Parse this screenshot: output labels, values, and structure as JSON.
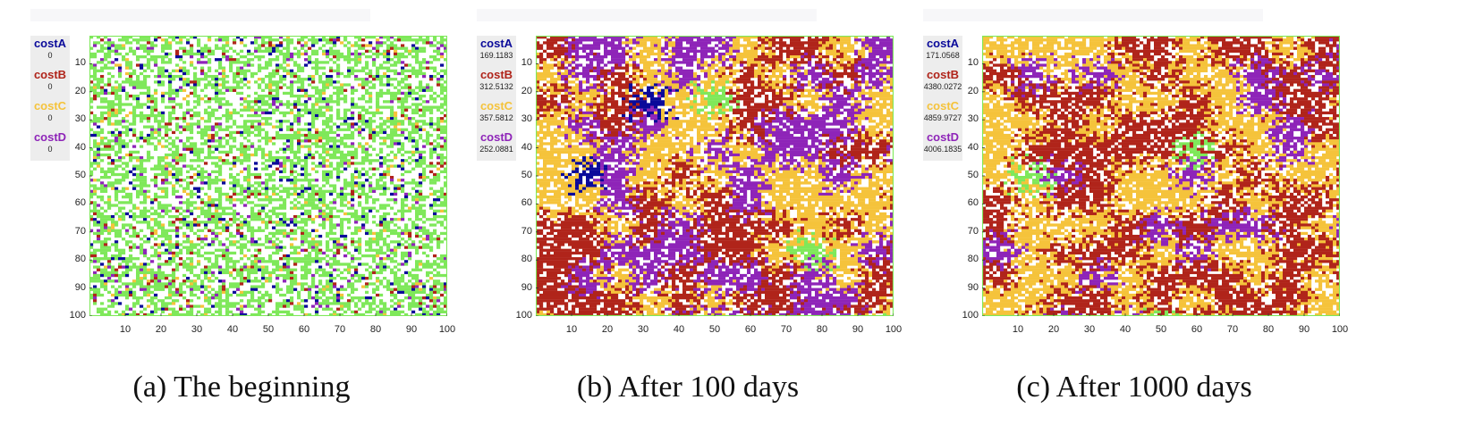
{
  "chart_data": [
    {
      "type": "heatmap",
      "caption": "(a) The beginning",
      "legend": [
        {
          "name": "costA",
          "value": "0",
          "color": "#0a0a9a"
        },
        {
          "name": "costB",
          "value": "0",
          "color": "#b0241a"
        },
        {
          "name": "costC",
          "value": "0",
          "color": "#f5c33b"
        },
        {
          "name": "costD",
          "value": "0",
          "color": "#8e24b8"
        }
      ],
      "grid_size": [
        100,
        100
      ],
      "xticks": [
        10,
        20,
        30,
        40,
        50,
        60,
        70,
        80,
        90,
        100
      ],
      "yticks": [
        10,
        20,
        30,
        40,
        50,
        60,
        70,
        80,
        90,
        100
      ],
      "xlim": [
        0,
        100
      ],
      "ylim": [
        0,
        100
      ],
      "cell_colors": {
        "empty": "#ffffff",
        "free": "#7fe85a",
        "A": "#0a0a9a",
        "B": "#b0241a",
        "C": "#f5c33b",
        "D": "#8e24b8"
      },
      "cell_fractions": {
        "empty": 0.45,
        "free": 0.43,
        "A": 0.03,
        "B": 0.03,
        "C": 0.03,
        "D": 0.03
      },
      "clustered": false,
      "frame_color": "#7fe85a"
    },
    {
      "type": "heatmap",
      "caption": "(b) After 100 days",
      "legend": [
        {
          "name": "costA",
          "value": "169.1183",
          "color": "#0a0a9a"
        },
        {
          "name": "costB",
          "value": "312.5132",
          "color": "#b0241a"
        },
        {
          "name": "costC",
          "value": "357.5812",
          "color": "#f5c33b"
        },
        {
          "name": "costD",
          "value": "252.0881",
          "color": "#8e24b8"
        }
      ],
      "grid_size": [
        100,
        100
      ],
      "xticks": [
        10,
        20,
        30,
        40,
        50,
        60,
        70,
        80,
        90,
        100
      ],
      "yticks": [
        10,
        20,
        30,
        40,
        50,
        60,
        70,
        80,
        90,
        100
      ],
      "xlim": [
        0,
        100
      ],
      "ylim": [
        0,
        100
      ],
      "cell_colors": {
        "empty": "#ffffff",
        "free": "#7fe85a",
        "A": "#0a0a9a",
        "B": "#b0241a",
        "C": "#f5c33b",
        "D": "#8e24b8"
      },
      "cell_fractions": {
        "empty": 0.22,
        "free": 0.01,
        "A": 0.01,
        "B": 0.24,
        "C": 0.27,
        "D": 0.25
      },
      "clustered": true,
      "frame_color": "#7fe85a"
    },
    {
      "type": "heatmap",
      "caption": "(c) After 1000 days",
      "legend": [
        {
          "name": "costA",
          "value": "171.0568",
          "color": "#0a0a9a"
        },
        {
          "name": "costB",
          "value": "4380.0272",
          "color": "#b0241a"
        },
        {
          "name": "costC",
          "value": "4859.9727",
          "color": "#f5c33b"
        },
        {
          "name": "costD",
          "value": "4006.1835",
          "color": "#8e24b8"
        }
      ],
      "grid_size": [
        100,
        100
      ],
      "xticks": [
        10,
        20,
        30,
        40,
        50,
        60,
        70,
        80,
        90,
        100
      ],
      "yticks": [
        10,
        20,
        30,
        40,
        50,
        60,
        70,
        80,
        90,
        100
      ],
      "xlim": [
        0,
        100
      ],
      "ylim": [
        0,
        100
      ],
      "cell_colors": {
        "empty": "#ffffff",
        "free": "#7fe85a",
        "A": "#0a0a9a",
        "B": "#b0241a",
        "C": "#f5c33b",
        "D": "#8e24b8"
      },
      "cell_fractions": {
        "empty": 0.22,
        "free": 0.01,
        "A": 0.0,
        "B": 0.33,
        "C": 0.3,
        "D": 0.14
      },
      "clustered": true,
      "frame_color": "#7fe85a"
    }
  ]
}
